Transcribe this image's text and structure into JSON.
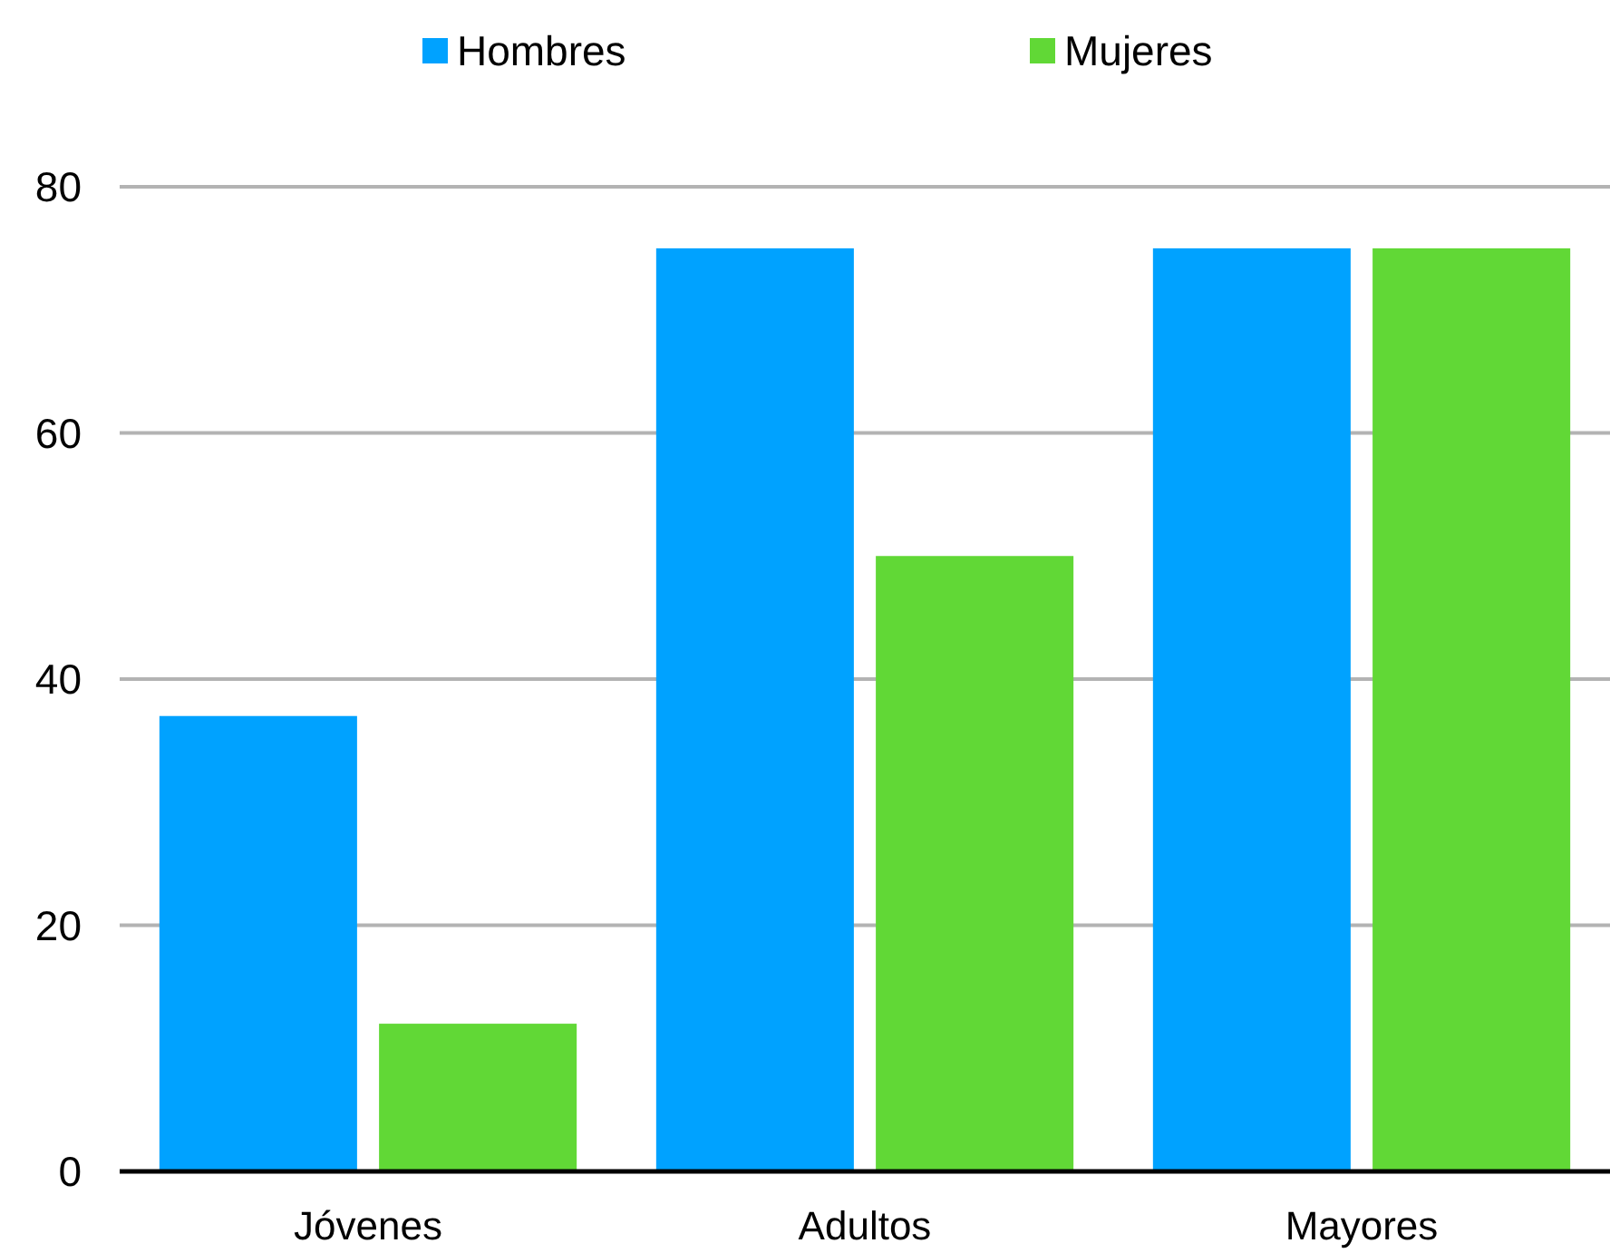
{
  "chart_data": {
    "type": "bar",
    "categories": [
      "Jóvenes",
      "Adultos",
      "Mayores"
    ],
    "series": [
      {
        "name": "Hombres",
        "color": "#00a2ff",
        "values": [
          37,
          75,
          75
        ]
      },
      {
        "name": "Mujeres",
        "color": "#61d836",
        "values": [
          12,
          50,
          75
        ]
      }
    ],
    "ylim": [
      0,
      80
    ],
    "yticks": [
      0,
      20,
      40,
      60,
      80
    ],
    "grid": "y",
    "legend": "top"
  }
}
